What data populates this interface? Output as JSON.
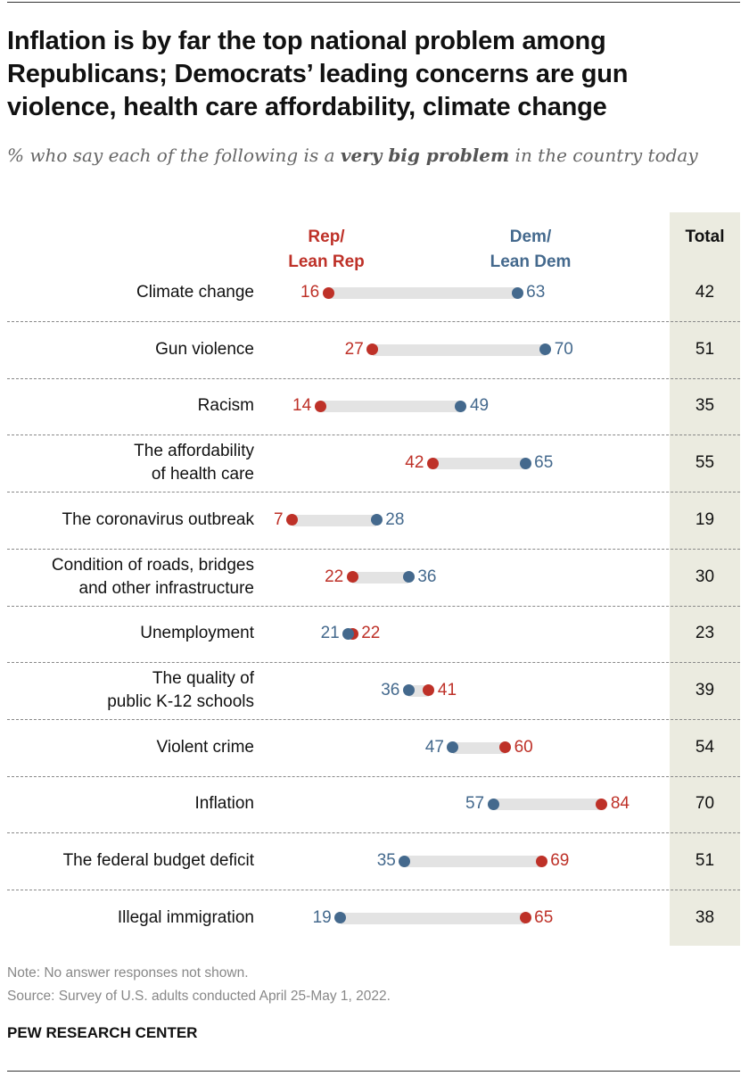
{
  "title": "Inflation is by far the top national problem among Republicans; Democrats’ leading concerns are gun violence, health care affordability, climate change",
  "subtitle_pre": "% who say each of the following is a ",
  "subtitle_bold": "very big problem",
  "subtitle_post": " in the country today",
  "chart_data": {
    "type": "dot",
    "series": [
      {
        "name": "Rep/ Lean Rep",
        "color": "#be3128"
      },
      {
        "name": "Dem/ Lean Dem",
        "color": "#44698d"
      }
    ],
    "total_header": "Total",
    "xlim": [
      0,
      100
    ],
    "rows": [
      {
        "label": "Climate change",
        "rep": 16,
        "dem": 63,
        "total": 42
      },
      {
        "label": "Gun violence",
        "rep": 27,
        "dem": 70,
        "total": 51
      },
      {
        "label": "Racism",
        "rep": 14,
        "dem": 49,
        "total": 35
      },
      {
        "label": "The affordability of health care",
        "lines": [
          "The affordability",
          "of health care"
        ],
        "rep": 42,
        "dem": 65,
        "total": 55
      },
      {
        "label": "The coronavirus outbreak",
        "rep": 7,
        "dem": 28,
        "total": 19
      },
      {
        "label": "Condition of roads, bridges and other infrastructure",
        "lines": [
          "Condition of roads, bridges",
          "and other infrastructure"
        ],
        "rep": 22,
        "dem": 36,
        "total": 30
      },
      {
        "label": "Unemployment",
        "rep": 22,
        "dem": 21,
        "total": 23
      },
      {
        "label": "The quality of public K-12 schools",
        "lines": [
          "The quality of",
          "public K-12 schools"
        ],
        "rep": 41,
        "dem": 36,
        "total": 39
      },
      {
        "label": "Violent crime",
        "rep": 60,
        "dem": 47,
        "total": 54
      },
      {
        "label": "Inflation",
        "rep": 84,
        "dem": 57,
        "total": 70
      },
      {
        "label": "The federal budget deficit",
        "rep": 69,
        "dem": 35,
        "total": 51
      },
      {
        "label": "Illegal immigration",
        "rep": 65,
        "dem": 19,
        "total": 38
      }
    ]
  },
  "rep_head": [
    "Rep/",
    "Lean Rep"
  ],
  "dem_head": [
    "Dem/",
    "Lean Dem"
  ],
  "note": "Note: No answer responses not shown.",
  "source": "Source: Survey of U.S. adults conducted April 25-May 1, 2022.",
  "org": "PEW RESEARCH CENTER"
}
